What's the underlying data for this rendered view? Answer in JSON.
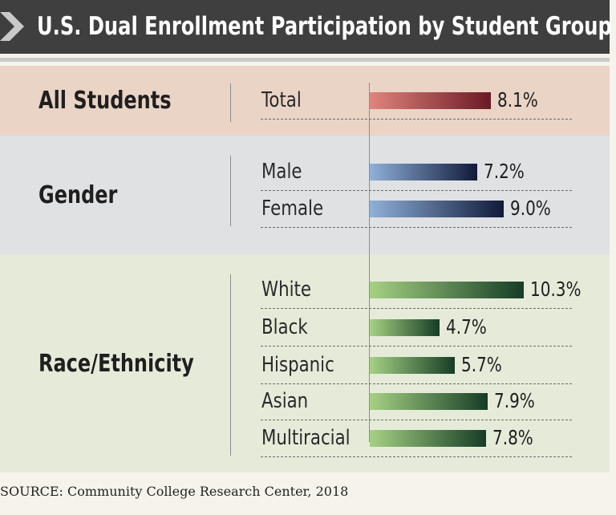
{
  "title": "U.S. Dual Enrollment Participation by Student Group",
  "source": "SOURCE: Community College Research Center, 2018",
  "colors": {
    "title_bar": "#3f3f3f",
    "all_students_band": "#ead4c6",
    "gender_band": "#dfe1e3",
    "race_band": "#e6ebd9",
    "all_students_bar_from": "#e0847c",
    "all_students_bar_to": "#6b1a26",
    "gender_bar_from": "#8fb0d8",
    "gender_bar_to": "#111a3a",
    "race_bar_from": "#a6d184",
    "race_bar_to": "#163d26"
  },
  "chart_data": {
    "type": "bar",
    "orientation": "horizontal",
    "unit": "%",
    "groups": [
      {
        "label": "All Students",
        "categories": [
          "Total"
        ],
        "values": [
          8.1
        ],
        "value_labels": [
          "8.1%"
        ]
      },
      {
        "label": "Gender",
        "categories": [
          "Male",
          "Female"
        ],
        "values": [
          7.2,
          9.0
        ],
        "value_labels": [
          "7.2%",
          "9.0%"
        ]
      },
      {
        "label": "Race/Ethnicity",
        "categories": [
          "White",
          "Black",
          "Hispanic",
          "Asian",
          "Multiracial"
        ],
        "values": [
          10.3,
          4.7,
          5.7,
          7.9,
          7.8
        ],
        "value_labels": [
          "10.3%",
          "4.7%",
          "5.7%",
          "7.9%",
          "7.8%"
        ]
      }
    ],
    "xlim": [
      0,
      10.3
    ],
    "grid": false,
    "legend": "none"
  }
}
